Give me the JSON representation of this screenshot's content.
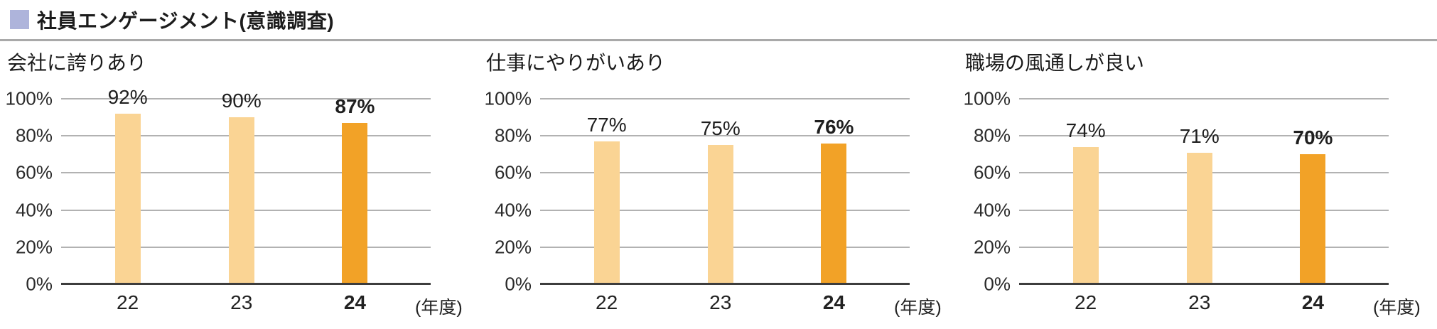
{
  "header": {
    "title": "社員エンゲージメント(意識調査)"
  },
  "axis_unit": "(年度)",
  "y_tick_labels": [
    "100%",
    "80%",
    "60%",
    "40%",
    "20%",
    "0%"
  ],
  "colors": {
    "accent_square": "#AEB4DB",
    "bar_normal": "#FAD494",
    "bar_highlight": "#F2A227",
    "gridline": "#B2B2B2",
    "axis_line": "#3D3D3D"
  },
  "chart_data": [
    {
      "type": "bar",
      "title": "会社に誇りあり",
      "categories": [
        "22",
        "23",
        "24"
      ],
      "values": [
        92,
        90,
        87
      ],
      "value_labels": [
        "92%",
        "90%",
        "87%"
      ],
      "highlight_index": 2,
      "xlabel": "年度",
      "ylabel": "",
      "ylim": [
        0,
        100
      ],
      "grid": true,
      "legend": "none"
    },
    {
      "type": "bar",
      "title": "仕事にやりがいあり",
      "categories": [
        "22",
        "23",
        "24"
      ],
      "values": [
        77,
        75,
        76
      ],
      "value_labels": [
        "77%",
        "75%",
        "76%"
      ],
      "highlight_index": 2,
      "xlabel": "年度",
      "ylabel": "",
      "ylim": [
        0,
        100
      ],
      "grid": true,
      "legend": "none"
    },
    {
      "type": "bar",
      "title": "職場の風通しが良い",
      "categories": [
        "22",
        "23",
        "24"
      ],
      "values": [
        74,
        71,
        70
      ],
      "value_labels": [
        "74%",
        "71%",
        "70%"
      ],
      "highlight_index": 2,
      "xlabel": "年度",
      "ylabel": "",
      "ylim": [
        0,
        100
      ],
      "grid": true,
      "legend": "none"
    }
  ]
}
